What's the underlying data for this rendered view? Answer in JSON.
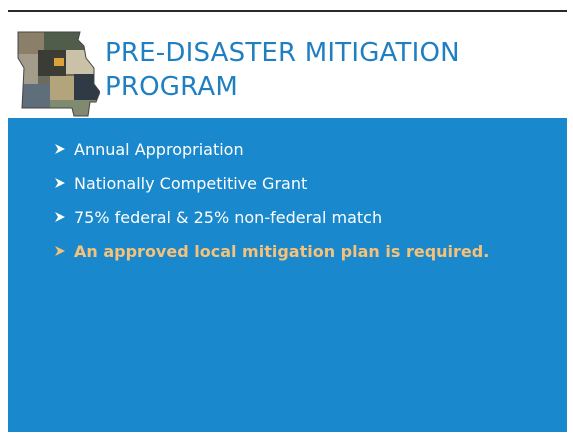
{
  "header": {
    "title_lines": [
      "PRE-DISASTER MITIGATION",
      "PROGRAM"
    ]
  },
  "bullets": [
    "Annual Appropriation",
    "Nationally Competitive Grant",
    "75% federal & 25% non-federal match",
    "An approved local mitigation plan is required."
  ]
}
